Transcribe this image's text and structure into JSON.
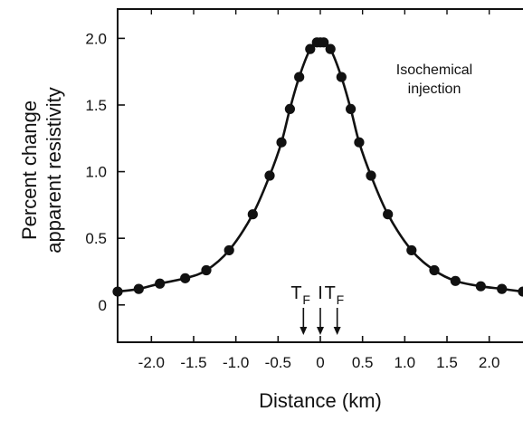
{
  "chart_data": {
    "type": "line",
    "xlabel": "Distance (km)",
    "ylabel_lines": [
      "Percent change",
      "apparent resistivity"
    ],
    "annotation_lines": [
      "Isochemical",
      "injection"
    ],
    "xlim": [
      -2.4,
      2.4
    ],
    "ylim": [
      -0.28,
      2.22
    ],
    "x_ticks": [
      -2.0,
      -1.5,
      -1.0,
      -0.5,
      0,
      0.5,
      1.0,
      1.5,
      2.0
    ],
    "x_tick_labels": [
      "-2.0",
      "-1.5",
      "-1.0",
      "-0.5",
      "0",
      "0.5",
      "1.0",
      "1.5",
      "2.0"
    ],
    "y_ticks": [
      0,
      0.5,
      1.0,
      1.5,
      2.0
    ],
    "y_tick_labels": [
      "0",
      "0.5",
      "1.0",
      "1.5",
      "2.0"
    ],
    "grid": false,
    "series": [
      {
        "marker": "filled-circle",
        "line": "smooth",
        "x": [
          -2.4,
          -2.15,
          -1.9,
          -1.6,
          -1.35,
          -1.08,
          -0.8,
          -0.6,
          -0.46,
          -0.36,
          -0.25,
          -0.12,
          -0.04,
          0.0,
          0.04,
          0.12,
          0.25,
          0.36,
          0.46,
          0.6,
          0.8,
          1.08,
          1.35,
          1.6,
          1.9,
          2.15,
          2.4
        ],
        "y": [
          0.1,
          0.12,
          0.16,
          0.2,
          0.26,
          0.41,
          0.68,
          0.97,
          1.22,
          1.47,
          1.71,
          1.92,
          1.97,
          1.97,
          1.97,
          1.92,
          1.71,
          1.47,
          1.22,
          0.97,
          0.68,
          0.41,
          0.26,
          0.18,
          0.14,
          0.12,
          0.1
        ]
      }
    ],
    "markers": [
      {
        "x": -0.2,
        "label": "T",
        "subscript": "F"
      },
      {
        "x": 0.0,
        "label": "I",
        "subscript": ""
      },
      {
        "x": 0.2,
        "label": "T",
        "subscript": "F"
      }
    ]
  }
}
